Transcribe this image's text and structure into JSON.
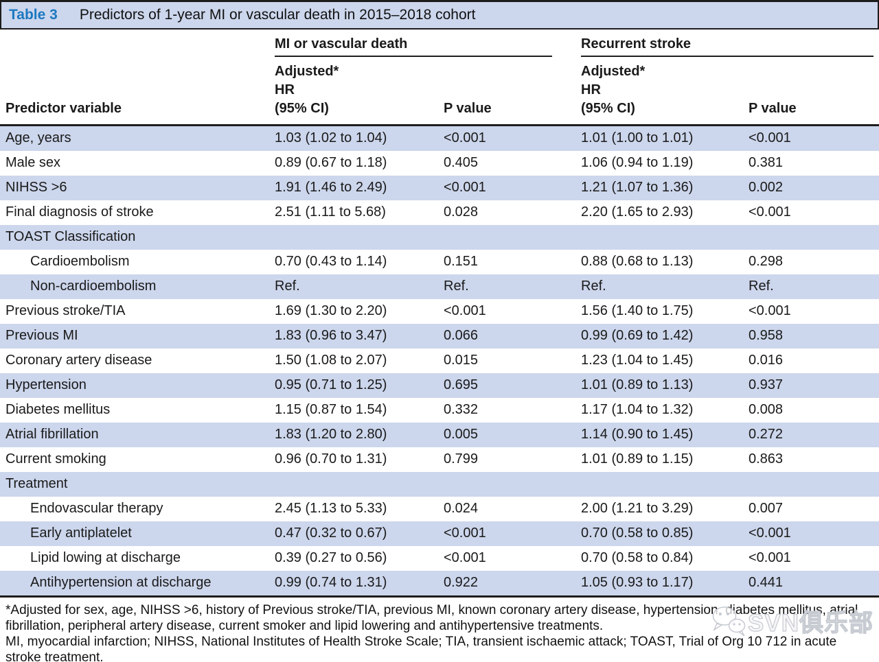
{
  "title_bar": {
    "label": "Table 3",
    "title": "Predictors of 1-year MI or vascular death in 2015–2018 cohort"
  },
  "table": {
    "groups": [
      "MI or vascular death",
      "Recurrent stroke"
    ],
    "columns": [
      "Predictor variable",
      "Adjusted*\nHR\n(95% CI)",
      "P value",
      "Adjusted*\nHR\n(95% CI)",
      "P value"
    ],
    "rows": [
      {
        "label": "Age, years",
        "indent": false,
        "section": false,
        "cells": [
          "1.03 (1.02 to 1.04)",
          "<0.001",
          "1.01 (1.00 to 1.01)",
          "<0.001"
        ]
      },
      {
        "label": "Male sex",
        "indent": false,
        "section": false,
        "cells": [
          "0.89 (0.67 to 1.18)",
          "0.405",
          "1.06 (0.94 to 1.19)",
          "0.381"
        ]
      },
      {
        "label": "NIHSS >6",
        "indent": false,
        "section": false,
        "cells": [
          "1.91 (1.46 to 2.49)",
          "<0.001",
          "1.21 (1.07 to 1.36)",
          "0.002"
        ]
      },
      {
        "label": "Final diagnosis of stroke",
        "indent": false,
        "section": false,
        "cells": [
          "2.51 (1.11 to 5.68)",
          "0.028",
          "2.20 (1.65 to 2.93)",
          "<0.001"
        ]
      },
      {
        "label": "TOAST Classification",
        "indent": false,
        "section": true,
        "cells": [
          "",
          "",
          "",
          ""
        ]
      },
      {
        "label": "Cardioembolism",
        "indent": true,
        "section": false,
        "cells": [
          "0.70 (0.43 to 1.14)",
          "0.151",
          "0.88 (0.68 to 1.13)",
          "0.298"
        ]
      },
      {
        "label": "Non-cardioembolism",
        "indent": true,
        "section": false,
        "cells": [
          "Ref.",
          "Ref.",
          "Ref.",
          "Ref."
        ]
      },
      {
        "label": "Previous stroke/TIA",
        "indent": false,
        "section": false,
        "cells": [
          "1.69 (1.30 to 2.20)",
          "<0.001",
          "1.56 (1.40 to 1.75)",
          "<0.001"
        ]
      },
      {
        "label": "Previous MI",
        "indent": false,
        "section": false,
        "cells": [
          "1.83 (0.96 to 3.47)",
          "0.066",
          "0.99 (0.69 to 1.42)",
          "0.958"
        ]
      },
      {
        "label": "Coronary artery disease",
        "indent": false,
        "section": false,
        "cells": [
          "1.50 (1.08 to 2.07)",
          "0.015",
          "1.23 (1.04 to 1.45)",
          "0.016"
        ]
      },
      {
        "label": "Hypertension",
        "indent": false,
        "section": false,
        "cells": [
          "0.95 (0.71 to 1.25)",
          "0.695",
          "1.01 (0.89 to 1.13)",
          "0.937"
        ]
      },
      {
        "label": "Diabetes mellitus",
        "indent": false,
        "section": false,
        "cells": [
          "1.15 (0.87 to 1.54)",
          "0.332",
          "1.17 (1.04 to 1.32)",
          "0.008"
        ]
      },
      {
        "label": "Atrial fibrillation",
        "indent": false,
        "section": false,
        "cells": [
          "1.83 (1.20 to 2.80)",
          "0.005",
          "1.14 (0.90 to 1.45)",
          "0.272"
        ]
      },
      {
        "label": "Current smoking",
        "indent": false,
        "section": false,
        "cells": [
          "0.96 (0.70 to 1.31)",
          "0.799",
          "1.01 (0.89 to 1.15)",
          "0.863"
        ]
      },
      {
        "label": "Treatment",
        "indent": false,
        "section": true,
        "cells": [
          "",
          "",
          "",
          ""
        ]
      },
      {
        "label": "Endovascular therapy",
        "indent": true,
        "section": false,
        "cells": [
          "2.45 (1.13 to 5.33)",
          "0.024",
          "2.00 (1.21 to 3.29)",
          "0.007"
        ]
      },
      {
        "label": "Early antiplatelet",
        "indent": true,
        "section": false,
        "cells": [
          "0.47 (0.32 to 0.67)",
          "<0.001",
          "0.70 (0.58 to 0.85)",
          "<0.001"
        ]
      },
      {
        "label": "Lipid lowing at discharge",
        "indent": true,
        "section": false,
        "cells": [
          "0.39 (0.27 to 0.56)",
          "<0.001",
          "0.70 (0.58 to 0.84)",
          "<0.001"
        ]
      },
      {
        "label": "Antihypertension at discharge",
        "indent": true,
        "section": false,
        "cells": [
          "0.99 (0.74 to 1.31)",
          "0.922",
          "1.05 (0.93 to 1.17)",
          "0.441"
        ]
      }
    ]
  },
  "footnotes": [
    "*Adjusted for sex, age, NIHSS >6, history of Previous stroke/TIA, previous MI, known coronary artery disease, hypertension, diabetes mellitus, atrial fibrillation, peripheral artery disease, current smoker and lipid lowering and antihypertensive treatments.",
    "MI, myocardial infarction; NIHSS, National Institutes of Health Stroke Scale; TIA, transient ischaemic attack; TOAST, Trial of Org 10 712 in acute stroke treatment."
  ],
  "watermark": {
    "icon": "wechat-icon",
    "text": "SVN俱乐部"
  },
  "colors": {
    "stripe": "#ccd6ec",
    "table_label_blue": "#1c78c0",
    "rule": "#1c1c1c"
  }
}
